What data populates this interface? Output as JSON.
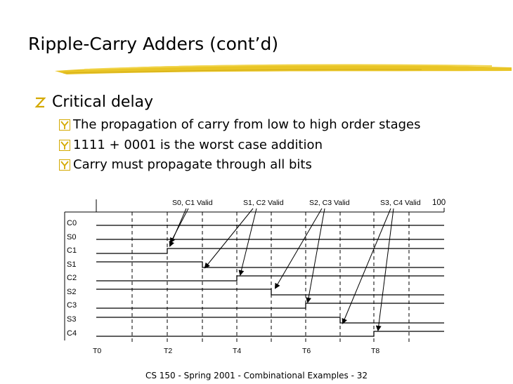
{
  "slide": {
    "title": "Ripple-Carry Adders (cont’d)",
    "bullet": "Critical delay",
    "sub_bullets": [
      "The propagation of carry from low to high order stages",
      "1111 + 0001 is the worst case addition",
      "Carry must propagate through all bits"
    ],
    "footer": "CS 150 - Spring 2001 - Combinational Examples - 32"
  },
  "timing": {
    "signals": [
      "C0",
      "S0",
      "C1",
      "S1",
      "C2",
      "S2",
      "C3",
      "S3",
      "C4"
    ],
    "time_labels": [
      "T0",
      "T2",
      "T4",
      "T6",
      "T8"
    ],
    "annotations": [
      "S0, C1 Valid",
      "S1, C2 Valid",
      "S2, C3 Valid",
      "S3, C4 Valid"
    ],
    "end_label": "100"
  },
  "colors": {
    "accent_stroke": "#e8c21a",
    "bullet_glyph": "#d4a900"
  }
}
